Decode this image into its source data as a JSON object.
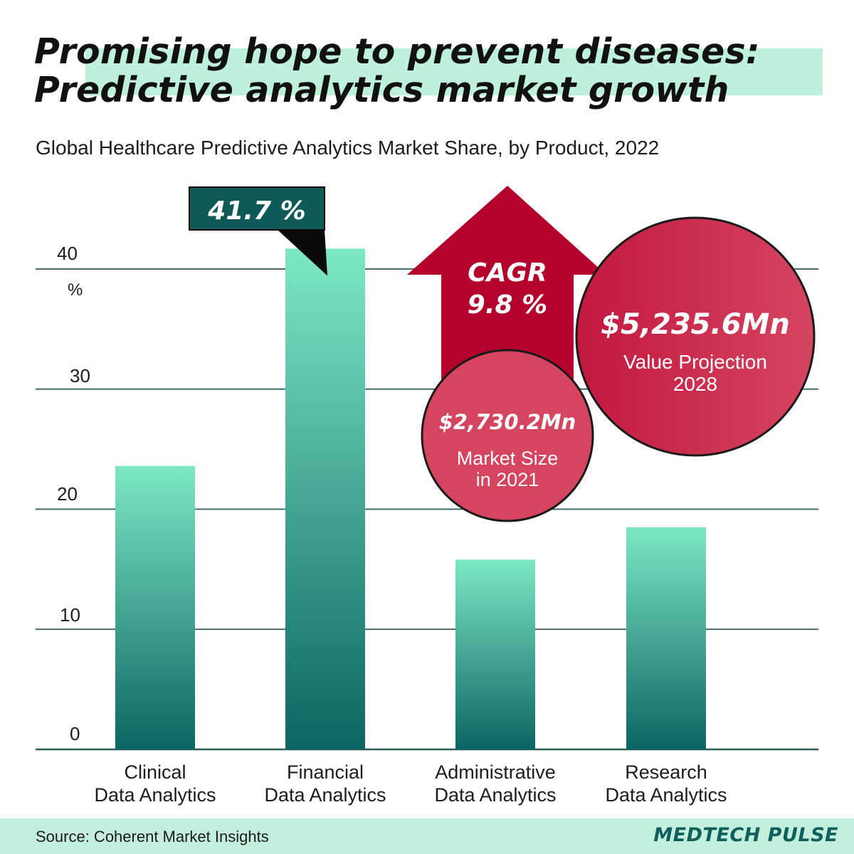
{
  "header": {
    "title_line1": "Promising hope to prevent diseases:",
    "title_line2": "Predictive analytics market growth",
    "subtitle": "Global Healthcare Predictive Analytics Market Share, by Product, 2022"
  },
  "chart_data": {
    "type": "bar",
    "categories": [
      [
        "Clinical",
        "Data Analytics"
      ],
      [
        "Financial",
        "Data Analytics"
      ],
      [
        "Administrative",
        "Data Analytics"
      ],
      [
        "Research",
        "Data Analytics"
      ]
    ],
    "values": [
      23.6,
      41.7,
      15.8,
      18.5
    ],
    "ylabel": "%",
    "ylim": [
      0,
      40
    ],
    "yticks": [
      0,
      10,
      20,
      30,
      40
    ],
    "grid": true,
    "highlight": {
      "category_index": 1,
      "label": "41.7 %"
    }
  },
  "callouts": {
    "cagr": {
      "label": "CAGR",
      "value": "9.8 %"
    },
    "market_size": {
      "value": "$2,730.2Mn",
      "line1": "Market Size",
      "line2": "in 2021"
    },
    "projection": {
      "value": "$5,235.6Mn",
      "line1": "Value Projection",
      "line2": "2028"
    }
  },
  "footer": {
    "source": "Source: Coherent Market Insights",
    "brand": "MEDTECH PULSE"
  },
  "colors": {
    "bar_top": "#7ee8c4",
    "bar_bottom": "#0a6663",
    "gridline": "#2f5a5a",
    "callout_dark": "#0e5a58",
    "arrow": "#b3002d",
    "circle_light": "#d54560",
    "circle_dark": "#c2183f",
    "footer_bg": "#c3efdd"
  }
}
